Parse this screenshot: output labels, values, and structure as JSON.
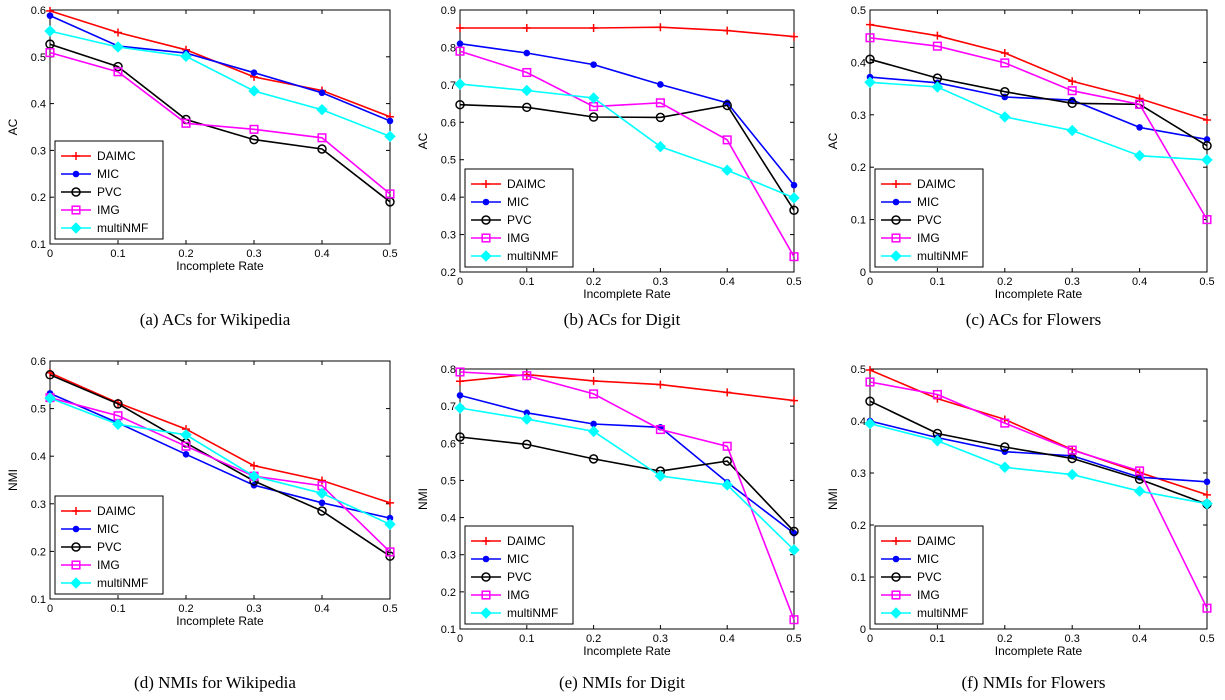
{
  "chart_data": [
    {
      "type": "line",
      "caption": "(a)  ACs for Wikipedia",
      "xlabel": "Incomplete Rate",
      "ylabel": "AC",
      "x": [
        0,
        0.1,
        0.2,
        0.3,
        0.4,
        0.5
      ],
      "xticks": [
        "0",
        "0.1",
        "0.2",
        "0.3",
        "0.4",
        "0.5"
      ],
      "ylim": [
        0.1,
        0.6
      ],
      "yticks": [
        "0.1",
        "0.2",
        "0.3",
        "0.4",
        "0.5",
        "0.6"
      ],
      "legend_position": "bottom-left",
      "series": [
        {
          "name": "DAIMC",
          "values": [
            0.598,
            0.552,
            0.515,
            0.457,
            0.428,
            0.372
          ]
        },
        {
          "name": "MIC",
          "values": [
            0.588,
            0.523,
            0.508,
            0.466,
            0.423,
            0.363
          ]
        },
        {
          "name": "PVC",
          "values": [
            0.527,
            0.479,
            0.366,
            0.323,
            0.303,
            0.19
          ]
        },
        {
          "name": "IMG",
          "values": [
            0.509,
            0.468,
            0.358,
            0.345,
            0.327,
            0.207
          ]
        },
        {
          "name": "multiNMF",
          "values": [
            0.555,
            0.521,
            0.501,
            0.427,
            0.387,
            0.33
          ]
        }
      ]
    },
    {
      "type": "line",
      "caption": "(b)  ACs for Digit",
      "xlabel": "Incomplete Rate",
      "ylabel": "AC",
      "x": [
        0,
        0.1,
        0.2,
        0.3,
        0.4,
        0.5
      ],
      "xticks": [
        "0",
        "0.1",
        "0.2",
        "0.3",
        "0.4",
        "0.5"
      ],
      "ylim": [
        0.2,
        0.9
      ],
      "yticks": [
        "0.2",
        "0.3",
        "0.4",
        "0.5",
        "0.6",
        "0.7",
        "0.8",
        "0.9"
      ],
      "legend_position": "bottom-left",
      "series": [
        {
          "name": "DAIMC",
          "values": [
            0.852,
            0.852,
            0.852,
            0.854,
            0.845,
            0.829
          ]
        },
        {
          "name": "MIC",
          "values": [
            0.81,
            0.785,
            0.754,
            0.701,
            0.652,
            0.432
          ]
        },
        {
          "name": "PVC",
          "values": [
            0.647,
            0.64,
            0.614,
            0.613,
            0.645,
            0.365
          ]
        },
        {
          "name": "IMG",
          "values": [
            0.79,
            0.733,
            0.642,
            0.652,
            0.553,
            0.241
          ]
        },
        {
          "name": "multiNMF",
          "values": [
            0.702,
            0.685,
            0.665,
            0.535,
            0.472,
            0.398
          ]
        }
      ]
    },
    {
      "type": "line",
      "caption": "(c)  ACs for Flowers",
      "xlabel": "Incomplete Rate",
      "ylabel": "AC",
      "x": [
        0,
        0.1,
        0.2,
        0.3,
        0.4,
        0.5
      ],
      "xticks": [
        "0",
        "0.1",
        "0.2",
        "0.3",
        "0.4",
        "0.5"
      ],
      "ylim": [
        0,
        0.5
      ],
      "yticks": [
        "0",
        "0.1",
        "0.2",
        "0.3",
        "0.4",
        "0.5"
      ],
      "legend_position": "bottom-left",
      "series": [
        {
          "name": "DAIMC",
          "values": [
            0.472,
            0.451,
            0.418,
            0.364,
            0.331,
            0.29
          ]
        },
        {
          "name": "MIC",
          "values": [
            0.372,
            0.361,
            0.334,
            0.328,
            0.276,
            0.253
          ]
        },
        {
          "name": "PVC",
          "values": [
            0.406,
            0.37,
            0.344,
            0.322,
            0.32,
            0.241
          ]
        },
        {
          "name": "IMG",
          "values": [
            0.447,
            0.431,
            0.399,
            0.346,
            0.32,
            0.1
          ]
        },
        {
          "name": "multiNMF",
          "values": [
            0.362,
            0.353,
            0.296,
            0.27,
            0.222,
            0.214
          ]
        }
      ]
    },
    {
      "type": "line",
      "caption": "(d)  NMIs for Wikipedia",
      "xlabel": "Incomplete Rate",
      "ylabel": "NMI",
      "x": [
        0,
        0.1,
        0.2,
        0.3,
        0.4,
        0.5
      ],
      "xticks": [
        "0",
        "0.1",
        "0.2",
        "0.3",
        "0.4",
        "0.5"
      ],
      "ylim": [
        0.1,
        0.6
      ],
      "yticks": [
        "0.1",
        "0.2",
        "0.3",
        "0.4",
        "0.5",
        "0.6"
      ],
      "legend_position": "bottom-left",
      "series": [
        {
          "name": "DAIMC",
          "values": [
            0.575,
            0.512,
            0.457,
            0.38,
            0.349,
            0.302
          ]
        },
        {
          "name": "MIC",
          "values": [
            0.532,
            0.47,
            0.404,
            0.339,
            0.302,
            0.27
          ]
        },
        {
          "name": "PVC",
          "values": [
            0.571,
            0.51,
            0.428,
            0.348,
            0.285,
            0.19
          ]
        },
        {
          "name": "IMG",
          "values": [
            0.523,
            0.485,
            0.421,
            0.358,
            0.338,
            0.199
          ]
        },
        {
          "name": "multiNMF",
          "values": [
            0.522,
            0.467,
            0.445,
            0.358,
            0.322,
            0.257
          ]
        }
      ]
    },
    {
      "type": "line",
      "caption": "(e)  NMIs for Digit",
      "xlabel": "Incomplete Rate",
      "ylabel": "NMI",
      "x": [
        0,
        0.1,
        0.2,
        0.3,
        0.4,
        0.5
      ],
      "xticks": [
        "0",
        "0.1",
        "0.2",
        "0.3",
        "0.4",
        "0.5"
      ],
      "ylim": [
        0.1,
        0.8
      ],
      "yticks": [
        "0.1",
        "0.2",
        "0.3",
        "0.4",
        "0.5",
        "0.6",
        "0.7",
        "0.8"
      ],
      "legend_position": "bottom-left",
      "series": [
        {
          "name": "DAIMC",
          "values": [
            0.767,
            0.785,
            0.768,
            0.758,
            0.737,
            0.715
          ]
        },
        {
          "name": "MIC",
          "values": [
            0.729,
            0.682,
            0.652,
            0.643,
            0.495,
            0.358
          ]
        },
        {
          "name": "PVC",
          "values": [
            0.617,
            0.597,
            0.558,
            0.525,
            0.552,
            0.363
          ]
        },
        {
          "name": "IMG",
          "values": [
            0.792,
            0.782,
            0.733,
            0.637,
            0.592,
            0.125
          ]
        },
        {
          "name": "multiNMF",
          "values": [
            0.695,
            0.665,
            0.632,
            0.512,
            0.488,
            0.313
          ]
        }
      ]
    },
    {
      "type": "line",
      "caption": "(f)  NMIs for Flowers",
      "xlabel": "Incomplete Rate",
      "ylabel": "NMI",
      "x": [
        0,
        0.1,
        0.2,
        0.3,
        0.4,
        0.5
      ],
      "xticks": [
        "0",
        "0.1",
        "0.2",
        "0.3",
        "0.4",
        "0.5"
      ],
      "ylim": [
        0,
        0.5
      ],
      "yticks": [
        "0",
        "0.1",
        "0.2",
        "0.3",
        "0.4",
        "0.5"
      ],
      "legend_position": "bottom-left",
      "series": [
        {
          "name": "DAIMC",
          "values": [
            0.498,
            0.443,
            0.403,
            0.345,
            0.301,
            0.258
          ]
        },
        {
          "name": "MIC",
          "values": [
            0.4,
            0.368,
            0.341,
            0.333,
            0.292,
            0.283
          ]
        },
        {
          "name": "PVC",
          "values": [
            0.438,
            0.376,
            0.35,
            0.328,
            0.288,
            0.24
          ]
        },
        {
          "name": "IMG",
          "values": [
            0.475,
            0.451,
            0.396,
            0.344,
            0.304,
            0.04
          ]
        },
        {
          "name": "multiNMF",
          "values": [
            0.395,
            0.362,
            0.311,
            0.297,
            0.265,
            0.241
          ]
        }
      ]
    }
  ],
  "series_styles": [
    {
      "color": "#ff0000",
      "marker": "plus"
    },
    {
      "color": "#0000ff",
      "marker": "dot"
    },
    {
      "color": "#000000",
      "marker": "circle"
    },
    {
      "color": "#ff00ff",
      "marker": "square"
    },
    {
      "color": "#00ffff",
      "marker": "diamond"
    }
  ]
}
